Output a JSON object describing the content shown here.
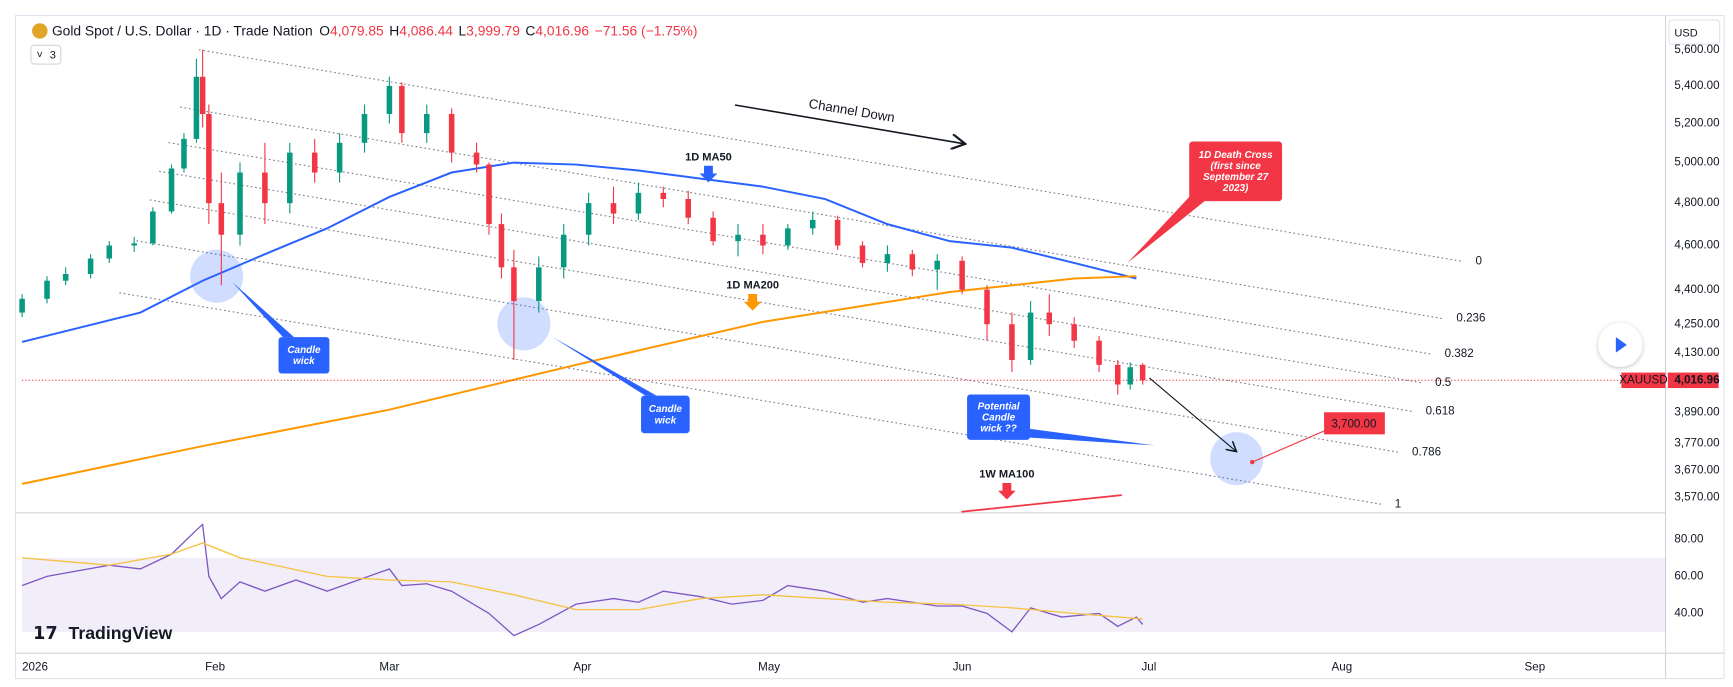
{
  "ui": {
    "currency": "USD",
    "indicator_count": 3,
    "brand": "TradingView"
  },
  "chart_data": [
    {
      "type": "candlestick",
      "title": "Gold Spot / U.S. Dollar · 1D · Trade Nation",
      "ohlc": [
        {
          "key": "O",
          "value": 4079.85,
          "label": "4,079.85"
        },
        {
          "key": "H",
          "value": 4086.44,
          "label": "4,086.44"
        },
        {
          "key": "L",
          "value": 3999.79,
          "label": "3,999.79"
        },
        {
          "key": "C",
          "value": 4016.96,
          "label": "4,016.96"
        }
      ],
      "change": "−71.56 (−1.75%)",
      "up_color": "#089981",
      "down_color": "#f23645",
      "x": [
        1,
        5,
        8,
        12,
        15,
        19,
        22,
        25,
        27,
        29,
        30,
        31,
        33,
        36,
        40,
        44,
        48,
        52,
        56,
        60,
        62,
        66,
        70,
        74,
        76,
        78,
        80,
        84,
        88,
        92,
        96,
        100,
        104,
        108,
        112,
        116,
        120,
        124,
        128,
        132,
        136,
        140,
        144,
        148,
        152,
        156,
        160,
        163,
        166,
        170,
        174,
        177,
        179,
        181
      ],
      "open": [
        4300,
        4360,
        4440,
        4470,
        4540,
        4600,
        4610,
        4760,
        4970,
        5120,
        5450,
        5250,
        4800,
        4650,
        4950,
        4800,
        5050,
        4950,
        5100,
        5250,
        5400,
        5150,
        5250,
        5050,
        4990,
        4700,
        4500,
        4350,
        4500,
        4650,
        4800,
        4750,
        4850,
        4820,
        4730,
        4620,
        4650,
        4600,
        4680,
        4720,
        4600,
        4520,
        4560,
        4490,
        4530,
        4400,
        4250,
        4100,
        4300,
        4250,
        4180,
        4080,
        4000,
        4079.85
      ],
      "high": [
        4380,
        4460,
        4500,
        4560,
        4620,
        4640,
        4780,
        4990,
        5150,
        5550,
        5600,
        5300,
        4950,
        5000,
        5100,
        5100,
        5120,
        5150,
        5300,
        5450,
        5420,
        5300,
        5280,
        5100,
        5000,
        4750,
        4580,
        4550,
        4700,
        4850,
        4880,
        4900,
        4880,
        4860,
        4760,
        4700,
        4700,
        4700,
        4760,
        4740,
        4620,
        4600,
        4580,
        4560,
        4550,
        4420,
        4300,
        4350,
        4380,
        4280,
        4200,
        4100,
        4090,
        4086.44
      ],
      "low": [
        4280,
        4340,
        4420,
        4450,
        4520,
        4570,
        4600,
        4750,
        4950,
        5100,
        5180,
        4700,
        4420,
        4600,
        4700,
        4750,
        4900,
        4900,
        5050,
        5200,
        5100,
        5100,
        5000,
        4950,
        4650,
        4450,
        4100,
        4300,
        4450,
        4600,
        4700,
        4720,
        4780,
        4700,
        4600,
        4550,
        4560,
        4580,
        4650,
        4580,
        4500,
        4480,
        4460,
        4400,
        4380,
        4180,
        4050,
        4080,
        4200,
        4150,
        4050,
        3960,
        3980,
        3999.79
      ],
      "close": [
        4360,
        4440,
        4470,
        4540,
        4600,
        4610,
        4760,
        4970,
        5120,
        5450,
        5250,
        4800,
        4650,
        4950,
        4800,
        5050,
        4950,
        5100,
        5250,
        5400,
        5150,
        5250,
        5050,
        4990,
        4700,
        4500,
        4350,
        4500,
        4650,
        4800,
        4750,
        4850,
        4820,
        4730,
        4620,
        4650,
        4600,
        4680,
        4720,
        4600,
        4520,
        4560,
        4490,
        4530,
        4400,
        4250,
        4100,
        4300,
        4250,
        4180,
        4080,
        4000,
        4070,
        4016.96
      ],
      "lines": [
        {
          "name": "1D MA50",
          "color": "#2962ff",
          "x": [
            1,
            20,
            30,
            40,
            50,
            60,
            70,
            80,
            90,
            100,
            110,
            120,
            130,
            140,
            150,
            160,
            170,
            180
          ],
          "values": [
            4175,
            4300,
            4440,
            4560,
            4680,
            4830,
            4950,
            5000,
            4990,
            4960,
            4920,
            4880,
            4820,
            4700,
            4620,
            4590,
            4520,
            4450
          ]
        },
        {
          "name": "1D MA200",
          "color": "#ff9800",
          "x": [
            1,
            30,
            60,
            90,
            120,
            150,
            170,
            180
          ],
          "values": [
            3620,
            3760,
            3900,
            4080,
            4260,
            4390,
            4450,
            4460
          ]
        }
      ],
      "price_tag": {
        "symbol": "XAUUSD",
        "value": 4016.96,
        "label": "4,016.96"
      },
      "target": {
        "value": 3700,
        "label": "3,700.00"
      },
      "trend_label": "1W MA100",
      "channel_label": "Channel Down",
      "fib_levels": [
        0,
        0.236,
        0.382,
        0.5,
        0.618,
        0.786,
        1
      ],
      "callouts": [
        {
          "lines": [
            "Candle",
            "wick"
          ]
        },
        {
          "lines": [
            "Candle",
            "wick"
          ]
        },
        {
          "lines": [
            "Potential",
            "Candle",
            "wick ??"
          ]
        },
        {
          "lines": [
            "1D Death Cross",
            "(first since",
            "September 27",
            "2023)"
          ]
        }
      ],
      "log": true,
      "grid": false,
      "xlim": [
        1,
        265
      ],
      "xticks": [
        {
          "value": 1,
          "label": "2026"
        },
        {
          "value": 32,
          "label": "Feb"
        },
        {
          "value": 60,
          "label": "Mar"
        },
        {
          "value": 91,
          "label": "Apr"
        },
        {
          "value": 121,
          "label": "May"
        },
        {
          "value": 152,
          "label": "Jun"
        },
        {
          "value": 182,
          "label": "Jul"
        },
        {
          "value": 213,
          "label": "Aug"
        },
        {
          "value": 244,
          "label": "Sep"
        }
      ],
      "ylim": [
        3520,
        5790
      ],
      "yticks": [
        {
          "value": 5600,
          "label": "5,600.00"
        },
        {
          "value": 5400,
          "label": "5,400.00"
        },
        {
          "value": 5200,
          "label": "5,200.00"
        },
        {
          "value": 5000,
          "label": "5,000.00"
        },
        {
          "value": 4800,
          "label": "4,800.00"
        },
        {
          "value": 4600,
          "label": "4,600.00"
        },
        {
          "value": 4400,
          "label": "4,400.00"
        },
        {
          "value": 4250,
          "label": "4,250.00"
        },
        {
          "value": 4130,
          "label": "4,130.00"
        },
        {
          "value": 3890,
          "label": "3,890.00"
        },
        {
          "value": 3770,
          "label": "3,770.00"
        },
        {
          "value": 3670,
          "label": "3,670.00"
        },
        {
          "value": 3570,
          "label": "3,570.00"
        }
      ]
    },
    {
      "type": "line",
      "series": [
        {
          "color": "#7e57c2",
          "x": [
            1,
            5,
            10,
            15,
            20,
            25,
            29,
            30,
            31,
            33,
            36,
            40,
            45,
            50,
            55,
            60,
            62,
            66,
            70,
            76,
            80,
            84,
            90,
            96,
            100,
            104,
            110,
            115,
            120,
            124,
            130,
            136,
            140,
            148,
            152,
            156,
            160,
            163,
            168,
            174,
            177,
            180,
            181
          ],
          "values": [
            55,
            60,
            63,
            66,
            64,
            72,
            85,
            88,
            60,
            48,
            57,
            52,
            58,
            52,
            58,
            64,
            55,
            56,
            52,
            40,
            28,
            34,
            45,
            48,
            46,
            52,
            49,
            45,
            47,
            55,
            52,
            46,
            48,
            44,
            44,
            40,
            30,
            43,
            38,
            40,
            33,
            38,
            34
          ]
        },
        {
          "color": "#f5c242",
          "x": [
            1,
            15,
            25,
            30,
            36,
            50,
            60,
            70,
            80,
            90,
            100,
            110,
            120,
            130,
            140,
            150,
            160,
            170,
            181
          ],
          "values": [
            70,
            66,
            72,
            78,
            70,
            60,
            58,
            57,
            50,
            42,
            42,
            48,
            50,
            48,
            46,
            45,
            43,
            40,
            37
          ]
        }
      ],
      "band": [
        30,
        70
      ],
      "xlim": [
        1,
        265
      ],
      "ylim": [
        19.1,
        93.1
      ],
      "yticks": [
        {
          "value": 80,
          "label": "80.00"
        },
        {
          "value": 60,
          "label": "60.00"
        },
        {
          "value": 40,
          "label": "40.00"
        }
      ]
    }
  ]
}
